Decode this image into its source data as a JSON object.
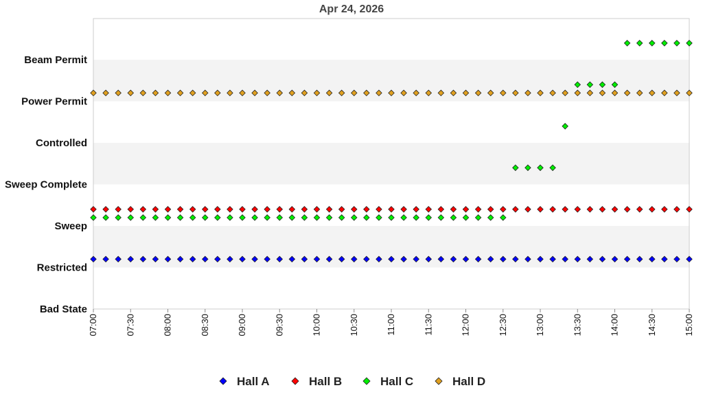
{
  "chart_data": {
    "type": "scatter",
    "title": "Apr 24, 2026",
    "y_categories": [
      "Bad State",
      "Restricted",
      "Sweep",
      "Sweep Complete",
      "Controlled",
      "Power Permit",
      "Beam Permit"
    ],
    "x_ticks": [
      "07:00",
      "07:30",
      "08:00",
      "08:30",
      "09:00",
      "09:30",
      "10:00",
      "10:30",
      "11:00",
      "11:30",
      "12:00",
      "12:30",
      "13:00",
      "13:30",
      "14:00",
      "14:30",
      "15:00"
    ],
    "x_range": [
      "07:00",
      "15:00"
    ],
    "sample_interval_minutes": 10,
    "legend_position": "bottom",
    "series": [
      {
        "name": "Hall A",
        "color": "#0000ff",
        "segments": [
          {
            "from": "07:00",
            "to": "15:00",
            "y": 1.2
          }
        ]
      },
      {
        "name": "Hall B",
        "color": "#ff0000",
        "segments": [
          {
            "from": "07:00",
            "to": "15:00",
            "y": 2.4
          }
        ]
      },
      {
        "name": "Hall C",
        "color": "#00ee00",
        "segments": [
          {
            "from": "07:00",
            "to": "12:30",
            "y": 2.2
          },
          {
            "from": "12:40",
            "to": "13:10",
            "y": 3.4
          },
          {
            "from": "13:20",
            "to": "13:20",
            "y": 4.4
          },
          {
            "from": "13:30",
            "to": "14:00",
            "y": 5.4
          },
          {
            "from": "14:10",
            "to": "15:00",
            "y": 6.4
          }
        ]
      },
      {
        "name": "Hall D",
        "color": "#e0a020",
        "segments": [
          {
            "from": "07:00",
            "to": "15:00",
            "y": 5.2
          }
        ]
      }
    ]
  }
}
